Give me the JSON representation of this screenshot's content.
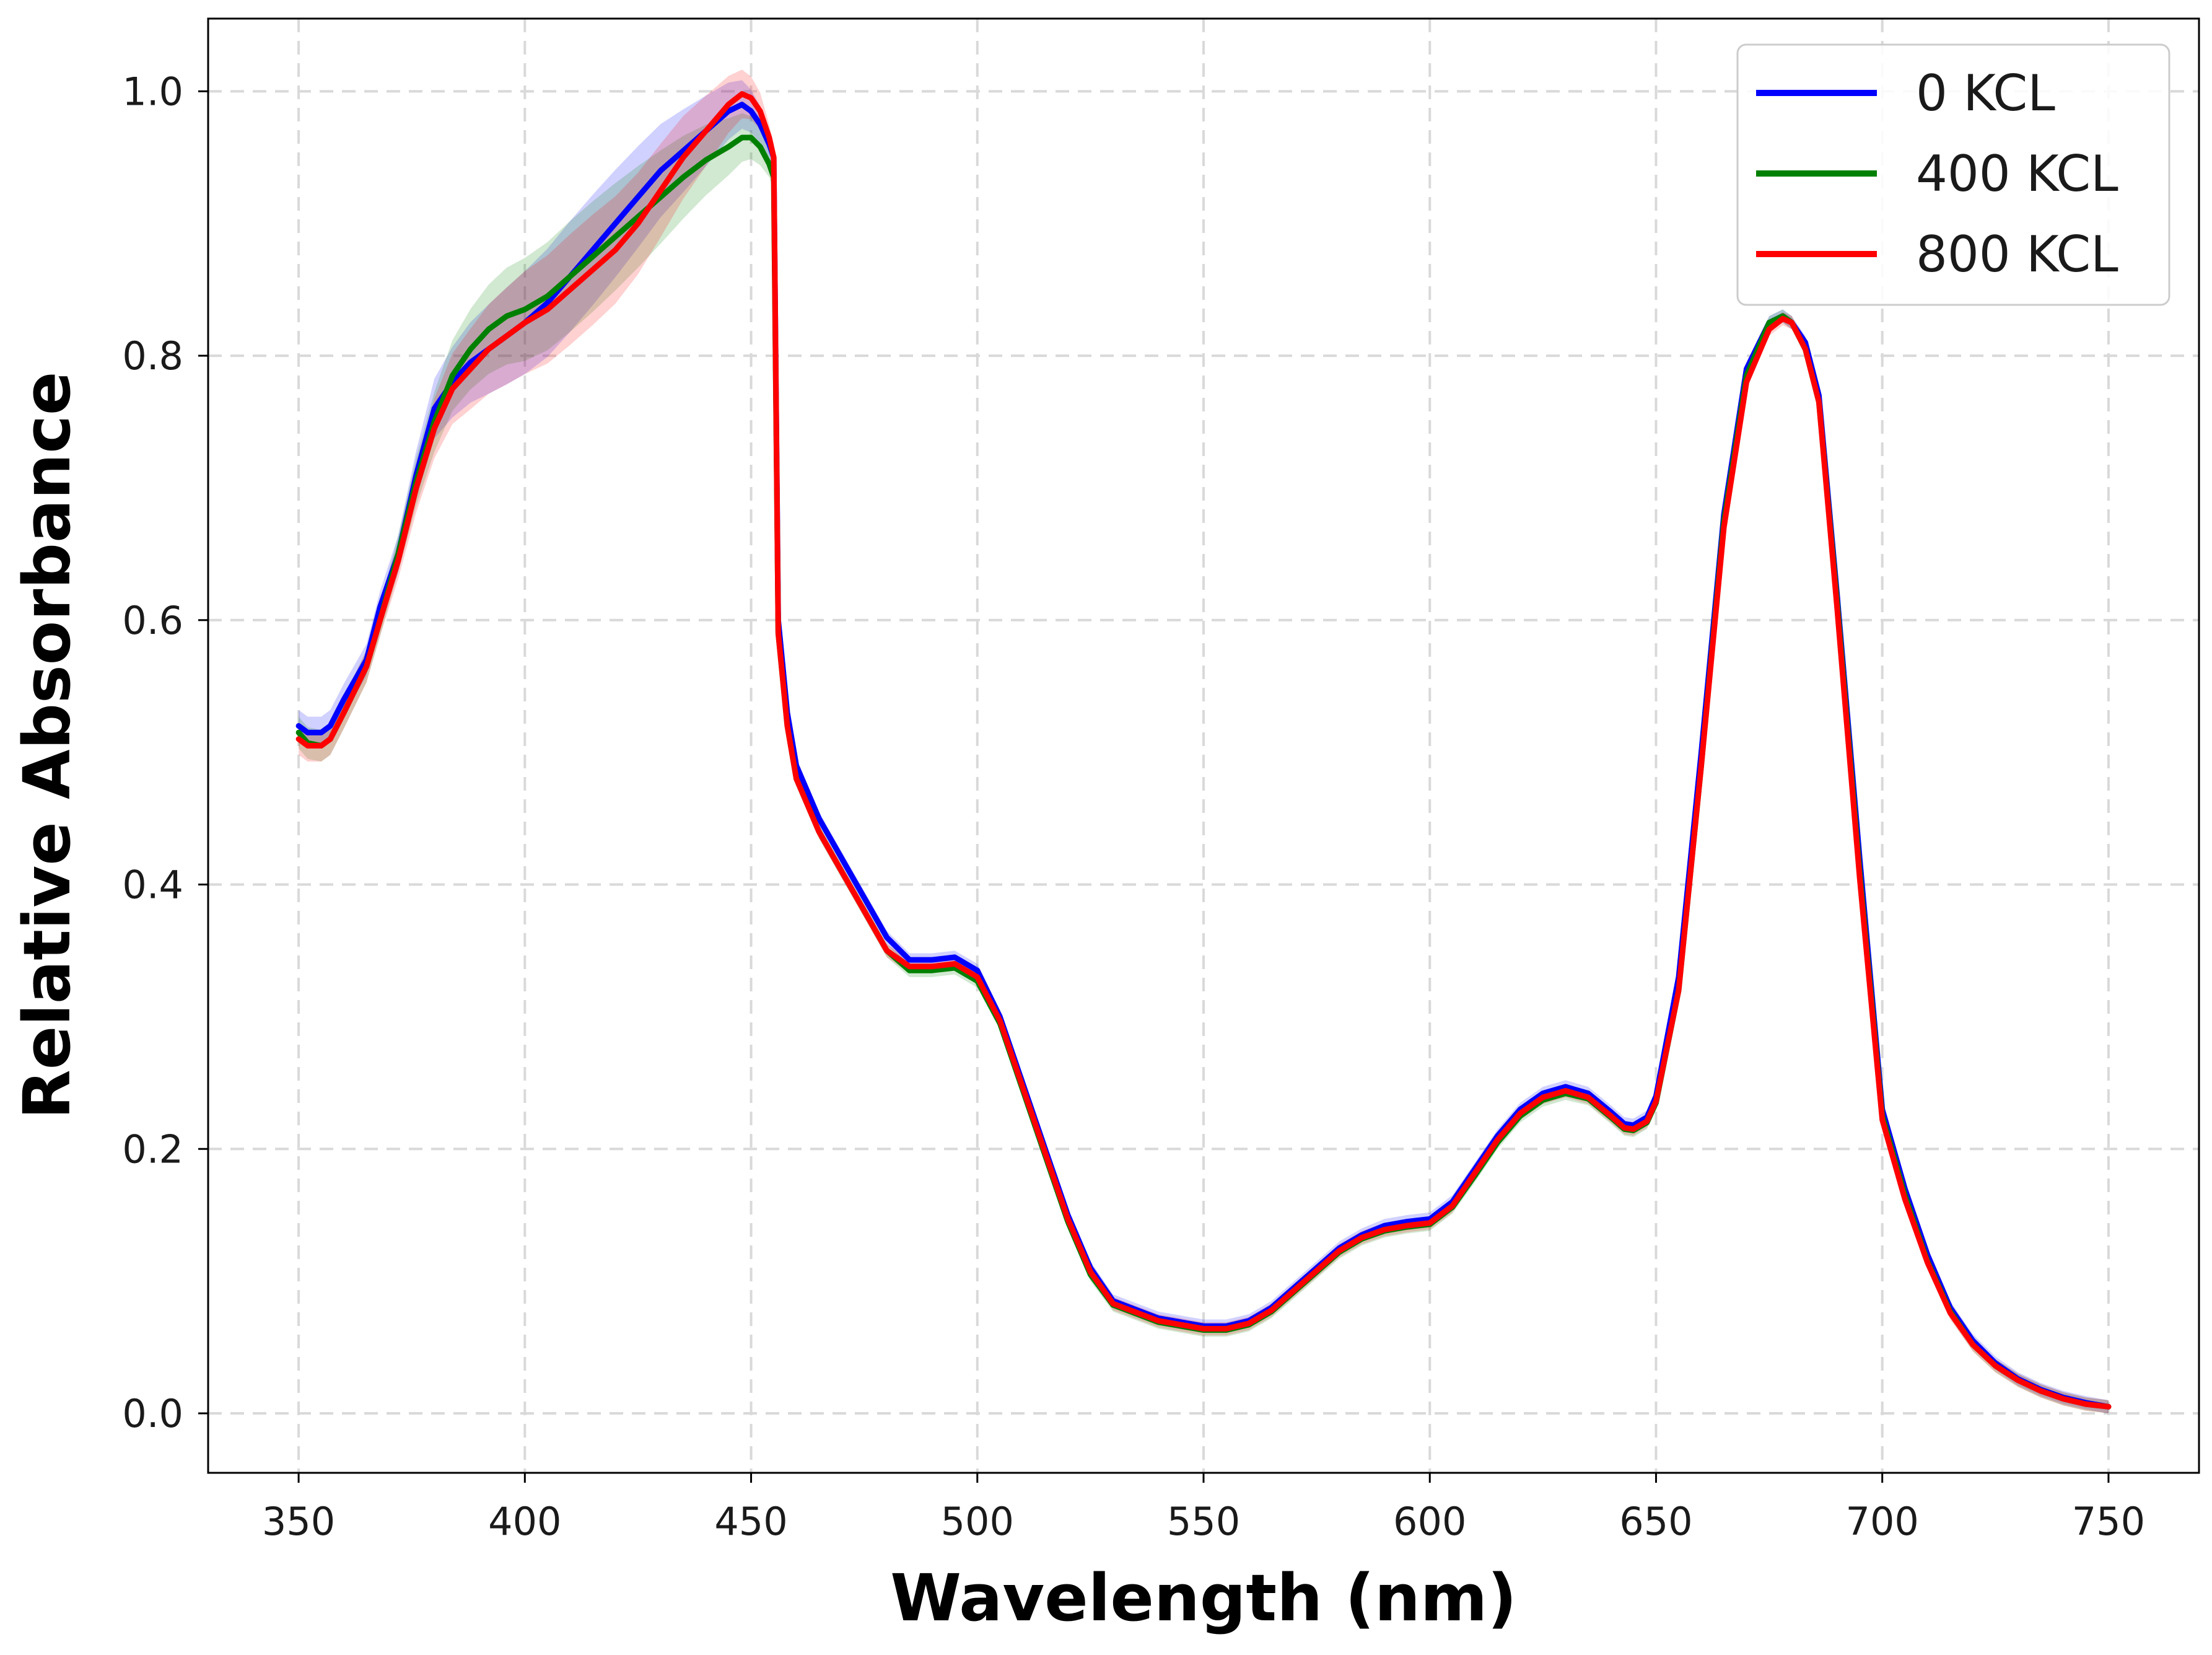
{
  "chart_data": {
    "type": "line",
    "title": "",
    "xlabel": "Wavelength (nm)",
    "ylabel": "Relative Absorbance",
    "xlim": [
      330,
      770
    ],
    "ylim": [
      -0.045,
      1.055
    ],
    "xticks": [
      350,
      400,
      450,
      500,
      550,
      600,
      650,
      700,
      750
    ],
    "yticks": [
      0.0,
      0.2,
      0.4,
      0.6,
      0.8,
      1.0
    ],
    "grid": true,
    "legend_position": "top-right",
    "x": [
      350,
      352,
      355,
      357,
      360,
      365,
      368,
      372,
      376,
      380,
      384,
      388,
      392,
      396,
      400,
      405,
      410,
      415,
      420,
      425,
      430,
      435,
      440,
      445,
      448,
      450,
      452,
      454,
      455,
      456,
      458,
      460,
      465,
      470,
      475,
      480,
      485,
      490,
      495,
      500,
      505,
      510,
      515,
      520,
      525,
      530,
      540,
      550,
      555,
      560,
      565,
      570,
      575,
      580,
      585,
      590,
      595,
      600,
      605,
      610,
      615,
      620,
      625,
      630,
      635,
      640,
      643,
      645,
      648,
      650,
      655,
      660,
      665,
      670,
      675,
      678,
      680,
      683,
      686,
      690,
      695,
      700,
      705,
      710,
      715,
      720,
      725,
      730,
      735,
      740,
      745,
      750
    ],
    "series": [
      {
        "name": "0 KCL",
        "color": "#0000ff",
        "values": [
          0.52,
          0.515,
          0.515,
          0.52,
          0.54,
          0.57,
          0.61,
          0.65,
          0.71,
          0.76,
          0.78,
          0.795,
          0.805,
          0.815,
          0.825,
          0.84,
          0.86,
          0.88,
          0.9,
          0.92,
          0.94,
          0.955,
          0.97,
          0.985,
          0.99,
          0.985,
          0.975,
          0.96,
          0.95,
          0.6,
          0.53,
          0.49,
          0.45,
          0.42,
          0.39,
          0.36,
          0.343,
          0.343,
          0.345,
          0.335,
          0.3,
          0.25,
          0.2,
          0.15,
          0.11,
          0.085,
          0.072,
          0.066,
          0.066,
          0.07,
          0.08,
          0.095,
          0.11,
          0.125,
          0.135,
          0.142,
          0.145,
          0.147,
          0.16,
          0.185,
          0.21,
          0.23,
          0.242,
          0.247,
          0.242,
          0.228,
          0.219,
          0.218,
          0.224,
          0.24,
          0.33,
          0.5,
          0.68,
          0.79,
          0.825,
          0.83,
          0.825,
          0.81,
          0.77,
          0.62,
          0.42,
          0.23,
          0.17,
          0.12,
          0.08,
          0.055,
          0.038,
          0.026,
          0.018,
          0.012,
          0.008,
          0.005
        ]
      },
      {
        "name": "400 KCL",
        "color": "#008000",
        "values": [
          0.515,
          0.507,
          0.505,
          0.51,
          0.53,
          0.565,
          0.6,
          0.65,
          0.705,
          0.75,
          0.785,
          0.805,
          0.82,
          0.83,
          0.835,
          0.845,
          0.86,
          0.875,
          0.89,
          0.905,
          0.92,
          0.935,
          0.948,
          0.958,
          0.965,
          0.965,
          0.958,
          0.945,
          0.935,
          0.59,
          0.52,
          0.48,
          0.44,
          0.41,
          0.38,
          0.35,
          0.335,
          0.335,
          0.337,
          0.327,
          0.295,
          0.245,
          0.195,
          0.145,
          0.105,
          0.082,
          0.069,
          0.063,
          0.063,
          0.067,
          0.077,
          0.092,
          0.107,
          0.122,
          0.132,
          0.138,
          0.141,
          0.143,
          0.156,
          0.18,
          0.205,
          0.225,
          0.237,
          0.242,
          0.238,
          0.224,
          0.215,
          0.214,
          0.22,
          0.235,
          0.32,
          0.49,
          0.675,
          0.785,
          0.825,
          0.83,
          0.825,
          0.805,
          0.765,
          0.615,
          0.41,
          0.225,
          0.165,
          0.115,
          0.077,
          0.052,
          0.036,
          0.025,
          0.017,
          0.011,
          0.007,
          0.005
        ]
      },
      {
        "name": "800 KCL",
        "color": "#ff0000",
        "values": [
          0.51,
          0.505,
          0.505,
          0.51,
          0.53,
          0.565,
          0.6,
          0.645,
          0.7,
          0.745,
          0.775,
          0.79,
          0.805,
          0.815,
          0.825,
          0.835,
          0.85,
          0.865,
          0.88,
          0.9,
          0.925,
          0.95,
          0.97,
          0.99,
          0.998,
          0.995,
          0.985,
          0.965,
          0.95,
          0.59,
          0.52,
          0.48,
          0.44,
          0.41,
          0.38,
          0.35,
          0.338,
          0.338,
          0.34,
          0.33,
          0.297,
          0.247,
          0.197,
          0.147,
          0.107,
          0.083,
          0.07,
          0.064,
          0.064,
          0.068,
          0.078,
          0.093,
          0.108,
          0.123,
          0.133,
          0.139,
          0.142,
          0.144,
          0.157,
          0.182,
          0.207,
          0.227,
          0.239,
          0.244,
          0.239,
          0.225,
          0.216,
          0.215,
          0.221,
          0.236,
          0.32,
          0.49,
          0.67,
          0.78,
          0.82,
          0.828,
          0.825,
          0.805,
          0.765,
          0.61,
          0.405,
          0.222,
          0.162,
          0.114,
          0.076,
          0.052,
          0.036,
          0.025,
          0.017,
          0.011,
          0.007,
          0.005
        ]
      }
    ]
  }
}
